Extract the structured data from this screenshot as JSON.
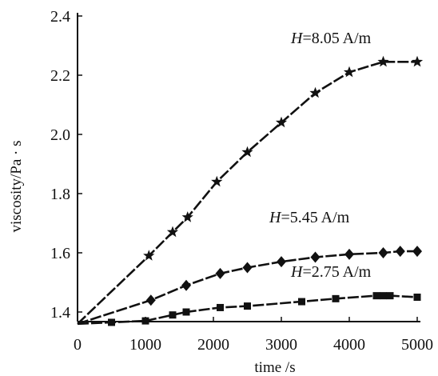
{
  "chart_data": {
    "type": "line",
    "xlabel": "time /s",
    "ylabel": "viscosity/Pa · s",
    "xlim": [
      0,
      5000
    ],
    "ylim": [
      1.36,
      2.4
    ],
    "xticks": [
      0,
      1000,
      2000,
      3000,
      4000,
      5000
    ],
    "xtick_labels": [
      "0",
      "1000",
      "2000",
      "3000",
      "4000",
      "5000"
    ],
    "yticks": [
      1.4,
      1.6,
      1.8,
      2.0,
      2.2,
      2.4
    ],
    "ytick_labels": [
      "1.4",
      "1.6",
      "1.8",
      "2.0",
      "2.2",
      "2.4"
    ],
    "grid": false,
    "series": [
      {
        "name_var": "H",
        "name_value": "=8.05 A/m",
        "marker": "star",
        "x": [
          0,
          1050,
          1400,
          1620,
          2050,
          2500,
          3000,
          3500,
          4000,
          4500,
          5000
        ],
        "y": [
          1.36,
          1.59,
          1.67,
          1.72,
          1.84,
          1.94,
          2.04,
          2.14,
          2.21,
          2.245,
          2.245
        ]
      },
      {
        "name_var": "H",
        "name_value": "=5.45 A/m",
        "marker": "diamond",
        "x": [
          0,
          1080,
          1600,
          2100,
          2500,
          3000,
          3500,
          4000,
          4500,
          4750,
          5000
        ],
        "y": [
          1.36,
          1.44,
          1.49,
          1.53,
          1.55,
          1.57,
          1.585,
          1.595,
          1.6,
          1.605,
          1.605
        ]
      },
      {
        "name_var": "H",
        "name_value": "=2.75 A/m",
        "marker": "square",
        "x": [
          0,
          500,
          1000,
          1400,
          1600,
          2100,
          2500,
          3300,
          3800,
          4400,
          4500,
          4600,
          5000
        ],
        "y": [
          1.36,
          1.365,
          1.37,
          1.39,
          1.4,
          1.415,
          1.42,
          1.435,
          1.445,
          1.455,
          1.455,
          1.455,
          1.45
        ]
      }
    ]
  }
}
